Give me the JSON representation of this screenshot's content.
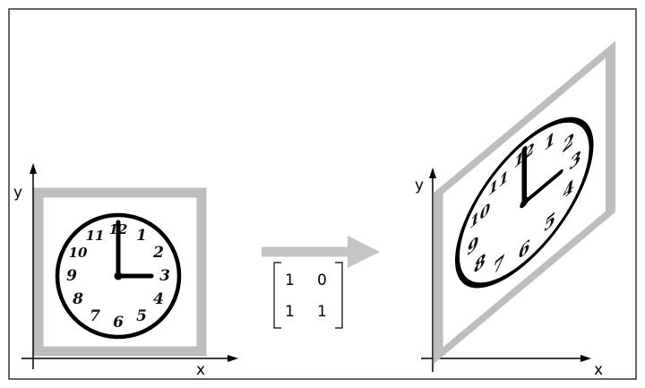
{
  "left_panel": {
    "axis_x_label": "x",
    "axis_y_label": "y",
    "clock": {
      "numerals": [
        "12",
        "1",
        "2",
        "3",
        "4",
        "5",
        "6",
        "7",
        "8",
        "9",
        "10",
        "11"
      ],
      "time_shown": "3:00"
    }
  },
  "transform": {
    "matrix": [
      [
        "1",
        "0"
      ],
      [
        "1",
        "1"
      ]
    ]
  },
  "right_panel": {
    "axis_x_label": "x",
    "axis_y_label": "y"
  },
  "colors": {
    "frame": "#bdbdbd",
    "arrow": "#c4c4c4",
    "ink": "#000000",
    "border": "#333333"
  }
}
